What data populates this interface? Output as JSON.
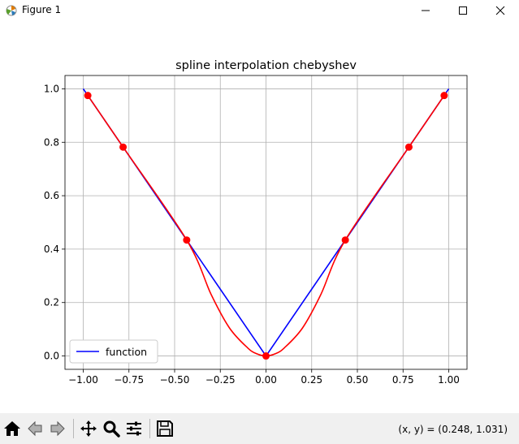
{
  "window": {
    "title": "Figure 1"
  },
  "colors": {
    "function_line": "#0000ff",
    "spline_line": "#ff0000",
    "nodes": "#ff0000",
    "grid": "#b0b0b0"
  },
  "toolbar": {
    "icons": [
      "home-icon",
      "back-icon",
      "forward-icon",
      "pan-icon",
      "zoom-icon",
      "configure-subplots-icon",
      "save-icon"
    ],
    "coords_text": "(x, y) = (0.248, 1.031)"
  },
  "chart_data": {
    "type": "line",
    "title": "spline interpolation chebyshev",
    "xlabel": "",
    "ylabel": "",
    "xlim": [
      -1.1,
      1.1
    ],
    "ylim": [
      -0.05,
      1.05
    ],
    "xticks": [
      -1.0,
      -0.75,
      -0.5,
      -0.25,
      0.0,
      0.25,
      0.5,
      0.75,
      1.0
    ],
    "xtick_labels": [
      "−1.00",
      "−0.75",
      "−0.50",
      "−0.25",
      "0.00",
      "0.25",
      "0.50",
      "0.75",
      "1.00"
    ],
    "yticks": [
      0.0,
      0.2,
      0.4,
      0.6,
      0.8,
      1.0
    ],
    "ytick_labels": [
      "0.0",
      "0.2",
      "0.4",
      "0.6",
      "0.8",
      "1.0"
    ],
    "grid": true,
    "legend": {
      "placement": "lower-left",
      "entries": [
        "function"
      ]
    },
    "series": [
      {
        "name": "function",
        "x": [
          -1.0,
          0.0,
          1.0
        ],
        "y": [
          1.0,
          0.0,
          1.0
        ]
      },
      {
        "x": [
          -0.975,
          -0.782,
          -0.434,
          -0.3,
          -0.2,
          -0.1,
          -0.05,
          0.0,
          0.05,
          0.1,
          0.2,
          0.3,
          0.434,
          0.782,
          0.975
        ],
        "y": [
          0.975,
          0.782,
          0.434,
          0.23,
          0.105,
          0.03,
          0.008,
          0.0,
          0.008,
          0.03,
          0.105,
          0.23,
          0.434,
          0.782,
          0.975
        ]
      },
      {
        "x": [
          -0.975,
          -0.782,
          -0.434,
          0.0,
          0.434,
          0.782,
          0.975
        ],
        "y": [
          0.975,
          0.782,
          0.434,
          0.0,
          0.434,
          0.782,
          0.975
        ]
      }
    ]
  }
}
